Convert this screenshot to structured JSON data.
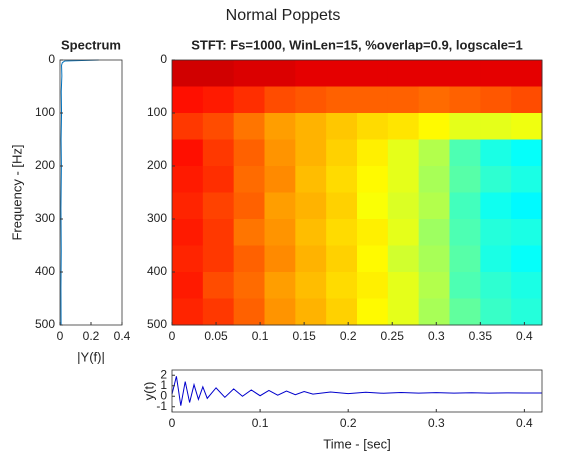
{
  "figure_title": "Normal Poppets",
  "chart_data": [
    {
      "type": "line",
      "title": "Spectrum",
      "xlabel": "|Y(f)|",
      "ylabel": "Frequency - [Hz]",
      "values": [
        0.25,
        0.03,
        0.015,
        0.01,
        0.012,
        0.008,
        0.01,
        0.007,
        0.009,
        0.006,
        0.008,
        0.006,
        0.007
      ],
      "frequencies": [
        0,
        2,
        5,
        10,
        30,
        60,
        100,
        150,
        200,
        280,
        360,
        430,
        500
      ],
      "color": "#0072bd",
      "xlim": [
        0,
        0.4
      ],
      "xticks": [
        0,
        0.2,
        0.4
      ],
      "ylim": [
        0,
        500
      ],
      "yticks": [
        0,
        100,
        200,
        300,
        400,
        500
      ],
      "y_reverse": true
    },
    {
      "type": "heatmap",
      "title": "STFT: Fs=1000, WinLen=15, %overlap=0.9, logscale=1",
      "colormap": "jet",
      "x": [
        0.0175,
        0.0525,
        0.0875,
        0.1225,
        0.1575,
        0.1925,
        0.2275,
        0.2625,
        0.2975,
        0.3325,
        0.3675,
        0.4025
      ],
      "y": [
        25,
        75,
        125,
        175,
        225,
        275,
        325,
        375,
        425,
        475
      ],
      "values": [
        [
          0.92,
          0.92,
          0.91,
          0.91,
          0.9,
          0.9,
          0.9,
          0.9,
          0.9,
          0.9,
          0.9,
          0.9
        ],
        [
          0.86,
          0.85,
          0.83,
          0.8,
          0.79,
          0.78,
          0.78,
          0.78,
          0.77,
          0.78,
          0.79,
          0.8
        ],
        [
          0.82,
          0.8,
          0.76,
          0.72,
          0.7,
          0.68,
          0.66,
          0.65,
          0.63,
          0.6,
          0.6,
          0.61
        ],
        [
          0.86,
          0.82,
          0.78,
          0.73,
          0.7,
          0.67,
          0.64,
          0.6,
          0.55,
          0.45,
          0.4,
          0.38
        ],
        [
          0.85,
          0.83,
          0.77,
          0.74,
          0.69,
          0.66,
          0.63,
          0.6,
          0.54,
          0.46,
          0.42,
          0.4
        ],
        [
          0.84,
          0.81,
          0.78,
          0.72,
          0.7,
          0.67,
          0.62,
          0.59,
          0.55,
          0.44,
          0.39,
          0.37
        ],
        [
          0.85,
          0.82,
          0.76,
          0.73,
          0.69,
          0.66,
          0.64,
          0.6,
          0.53,
          0.45,
          0.41,
          0.4
        ],
        [
          0.84,
          0.82,
          0.78,
          0.74,
          0.7,
          0.67,
          0.63,
          0.58,
          0.54,
          0.46,
          0.4,
          0.38
        ],
        [
          0.85,
          0.8,
          0.77,
          0.72,
          0.69,
          0.66,
          0.64,
          0.6,
          0.55,
          0.45,
          0.42,
          0.4
        ],
        [
          0.84,
          0.82,
          0.78,
          0.73,
          0.7,
          0.67,
          0.63,
          0.6,
          0.54,
          0.47,
          0.43,
          0.41
        ]
      ],
      "xlim": [
        0,
        0.42
      ],
      "xticks": [
        0,
        0.05,
        0.1,
        0.15,
        0.2,
        0.25,
        0.3,
        0.35,
        0.4
      ],
      "ylim": [
        0,
        500
      ],
      "yticks": [
        0,
        100,
        200,
        300,
        400,
        500
      ],
      "y_reverse": true
    },
    {
      "type": "line",
      "xlabel": "Time - [sec]",
      "ylabel": "y(t)",
      "color": "#0000cc",
      "x": [
        0,
        0.005,
        0.01,
        0.015,
        0.02,
        0.025,
        0.03,
        0.035,
        0.04,
        0.05,
        0.06,
        0.07,
        0.08,
        0.09,
        0.1,
        0.11,
        0.12,
        0.13,
        0.14,
        0.15,
        0.16,
        0.18,
        0.2,
        0.22,
        0.24,
        0.26,
        0.28,
        0.3,
        0.32,
        0.34,
        0.36,
        0.38,
        0.4,
        0.42
      ],
      "values": [
        0.2,
        1.9,
        -0.9,
        1.4,
        -0.6,
        1.1,
        -0.3,
        0.9,
        -0.2,
        0.8,
        -0.1,
        0.7,
        0,
        0.6,
        0.05,
        0.55,
        0.1,
        0.5,
        0.15,
        0.45,
        0.2,
        0.4,
        0.25,
        0.38,
        0.28,
        0.36,
        0.3,
        0.34,
        0.3,
        0.33,
        0.3,
        0.32,
        0.31,
        0.31
      ],
      "xlim": [
        0,
        0.42
      ],
      "xticks": [
        0,
        0.1,
        0.2,
        0.3,
        0.4
      ],
      "ylim": [
        -1.5,
        2.5
      ],
      "yticks": [
        -1,
        0,
        1,
        2
      ]
    }
  ]
}
